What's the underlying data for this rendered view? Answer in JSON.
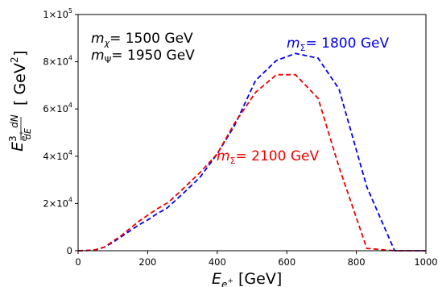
{
  "chart_data": {
    "type": "line",
    "xlabel": "E_{e+} [GeV]",
    "ylabel": "E^3 dN/dE [GeV^2]",
    "xlim": [
      0,
      1000
    ],
    "ylim": [
      0,
      100000
    ],
    "x_ticks": [
      0,
      200,
      400,
      600,
      800,
      1000
    ],
    "x_tick_labels": [
      "0",
      "200",
      "400",
      "600",
      "800",
      "1000"
    ],
    "y_ticks": [
      0,
      20000,
      40000,
      60000,
      80000,
      100000
    ],
    "y_tick_labels": [
      {
        "mant": "0",
        "exp": ""
      },
      {
        "mant": "2×10",
        "exp": "4"
      },
      {
        "mant": "4×10",
        "exp": "4"
      },
      {
        "mant": "6×10",
        "exp": "4"
      },
      {
        "mant": "8×10",
        "exp": "4"
      },
      {
        "mant": "1×10",
        "exp": "5"
      }
    ],
    "annotations": {
      "m_chi": "= 1500 GeV",
      "m_psi": "= 1950 GeV"
    },
    "series": [
      {
        "name": "= 1800 GeV",
        "color": "#0000ee",
        "x": [
          0,
          25,
          50,
          75,
          100,
          125,
          150,
          175,
          200,
          225,
          255,
          300,
          350,
          400,
          450,
          510,
          570,
          625,
          690,
          750,
          830,
          910,
          1000
        ],
        "y": [
          0,
          100,
          400,
          1500,
          3500,
          6000,
          8500,
          11000,
          13000,
          15500,
          18000,
          24000,
          31000,
          41000,
          53000,
          72000,
          80500,
          83500,
          81500,
          68500,
          27000,
          0,
          0
        ]
      },
      {
        "name": "= 2100 GeV",
        "color": "#ee0000",
        "x": [
          0,
          25,
          50,
          75,
          100,
          125,
          150,
          175,
          200,
          225,
          260,
          300,
          350,
          400,
          450,
          510,
          570,
          625,
          690,
          750,
          830,
          910,
          1000
        ],
        "y": [
          0,
          100,
          400,
          1500,
          4000,
          6500,
          9500,
          12500,
          15000,
          17500,
          20500,
          26000,
          33000,
          41000,
          54000,
          67000,
          74500,
          74500,
          64500,
          35500,
          1000,
          0,
          0
        ]
      }
    ]
  }
}
